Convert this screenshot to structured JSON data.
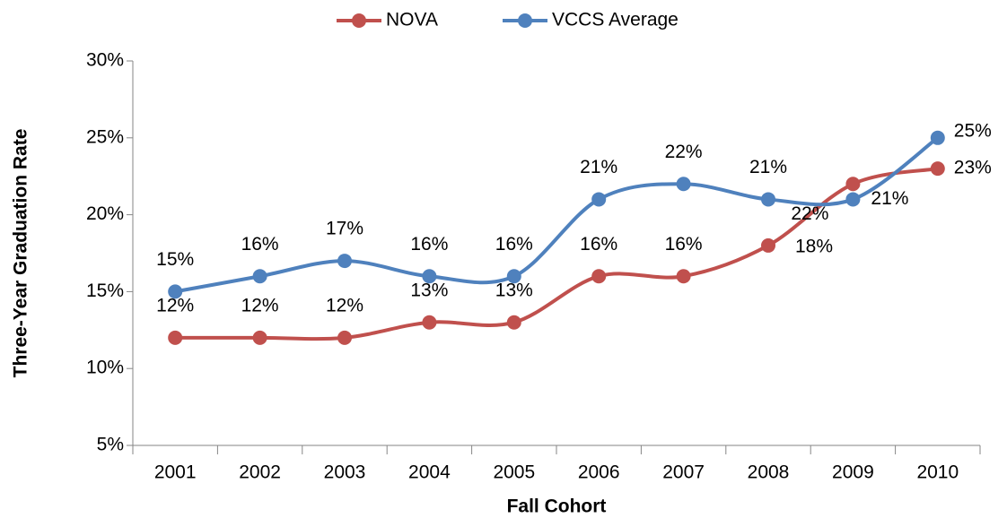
{
  "chart_data": {
    "type": "line",
    "x_label": "Fall Cohort",
    "y_label": "Three-Year Graduation Rate",
    "categories": [
      "2001",
      "2002",
      "2003",
      "2004",
      "2005",
      "2006",
      "2007",
      "2008",
      "2009",
      "2010"
    ],
    "series": [
      {
        "name": "NOVA",
        "color": "#c0504d",
        "values": [
          12,
          12,
          12,
          13,
          13,
          16,
          16,
          18,
          22,
          23
        ],
        "value_labels": [
          "12%",
          "12%",
          "12%",
          "13%",
          "13%",
          "16%",
          "16%",
          "18%",
          "22%",
          "23%"
        ]
      },
      {
        "name": "VCCS Average",
        "color": "#4f81bd",
        "values": [
          15,
          16,
          17,
          16,
          16,
          21,
          22,
          21,
          21,
          25
        ],
        "value_labels": [
          "15%",
          "16%",
          "17%",
          "16%",
          "16%",
          "21%",
          "22%",
          "21%",
          "21%",
          "25%"
        ]
      }
    ],
    "ylim": [
      5,
      30
    ],
    "yticks": [
      {
        "value": 5,
        "label": "5%"
      },
      {
        "value": 10,
        "label": "10%"
      },
      {
        "value": 15,
        "label": "15%"
      },
      {
        "value": 20,
        "label": "20%"
      },
      {
        "value": 25,
        "label": "25%"
      },
      {
        "value": 30,
        "label": "30%"
      }
    ],
    "smooth": true,
    "legend": "top"
  }
}
